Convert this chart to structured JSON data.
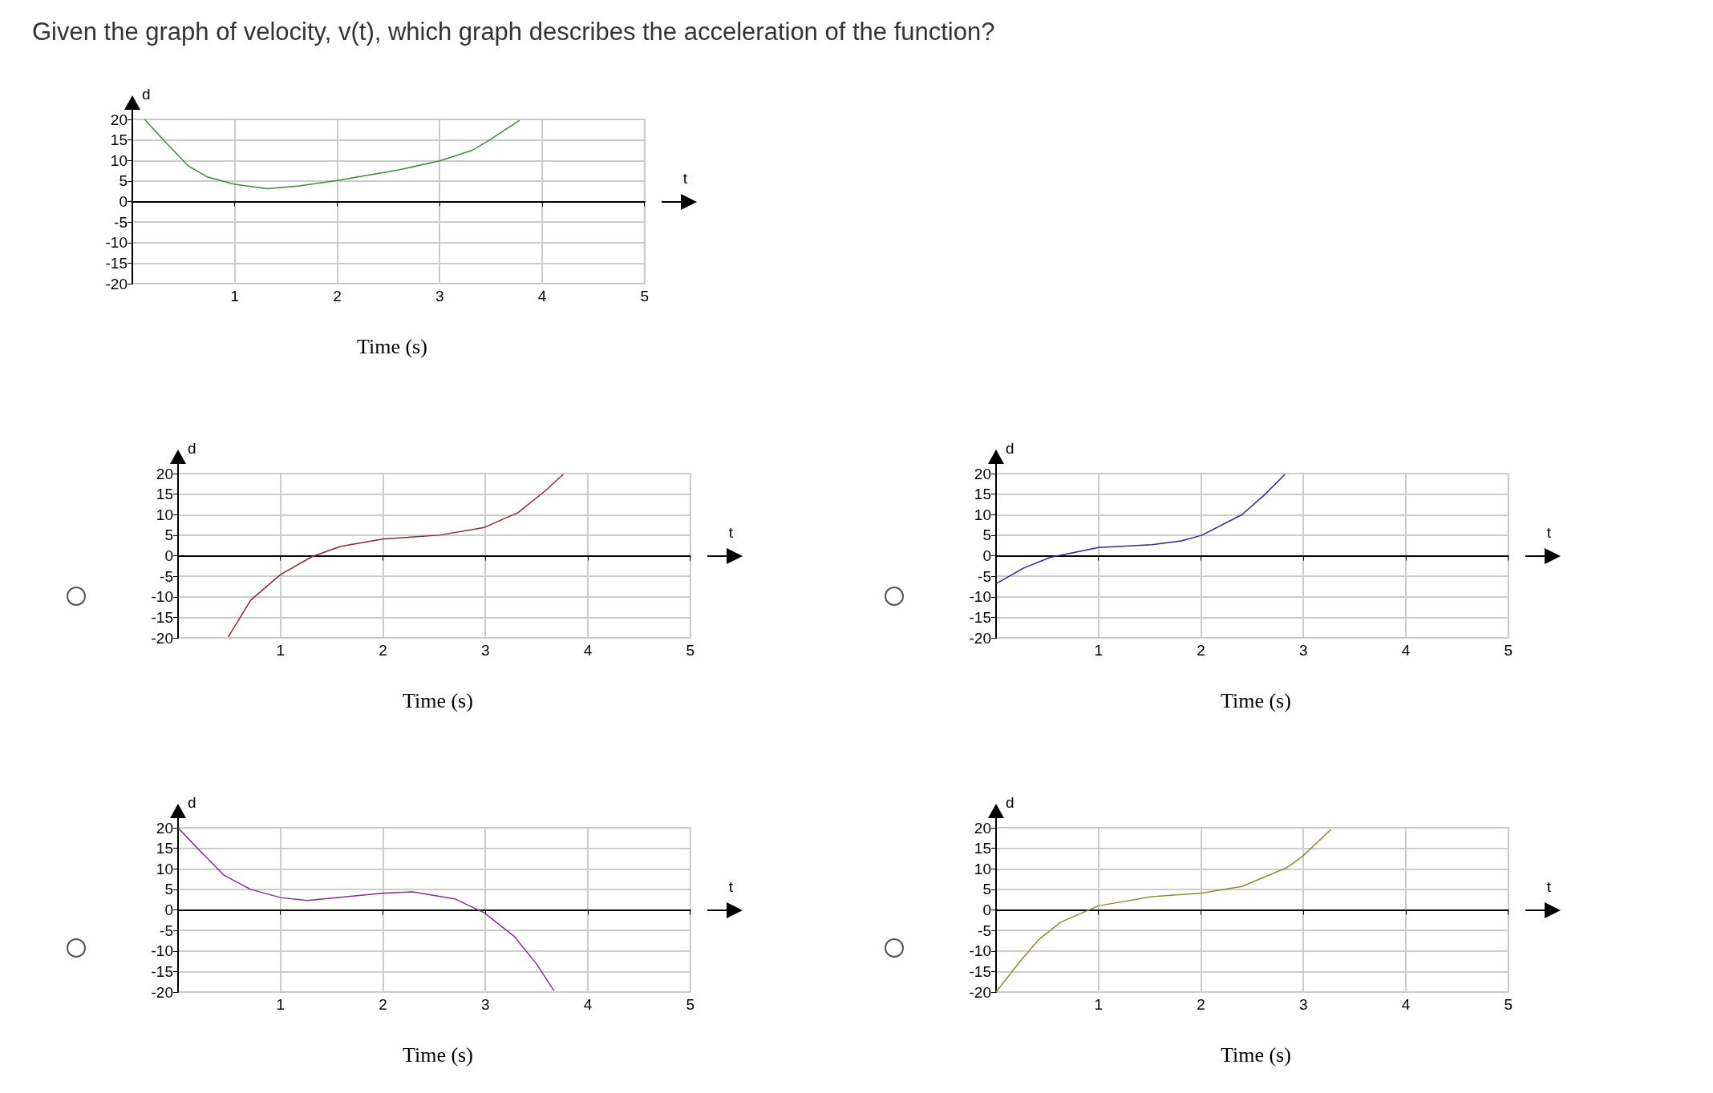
{
  "chart_data": [
    {
      "type": "line",
      "title": "Given the graph of velocity, v(t), which graph describes the acceleration of the function?",
      "xlabel": "t",
      "ylabel": "d",
      "annotations": [
        "Time (s)"
      ],
      "xlim": [
        0,
        5
      ],
      "ylim": [
        -20,
        20
      ],
      "xticks": [
        1,
        2,
        3,
        4,
        5
      ],
      "yticks": [
        -20,
        -15,
        -10,
        -5,
        0,
        5,
        10,
        15,
        20
      ],
      "grid": true,
      "marker": "none",
      "series": [
        {
          "color": "#3c8c3c",
          "x": [
            0.12,
            0.33,
            0.55,
            0.73,
            1.0,
            1.32,
            1.63,
            2.0,
            2.6,
            3.0,
            3.32,
            3.47,
            3.78
          ],
          "values": [
            20,
            14.3,
            8.6,
            6.0,
            4.2,
            3.1,
            3.8,
            5.1,
            7.7,
            9.9,
            12.5,
            14.7,
            19.8
          ]
        }
      ]
    },
    {
      "type": "line",
      "xlabel": "t",
      "ylabel": "d",
      "annotations": [
        "Time (s)"
      ],
      "xlim": [
        0,
        5
      ],
      "ylim": [
        -20,
        20
      ],
      "xticks": [
        1,
        2,
        3,
        4,
        5
      ],
      "yticks": [
        -20,
        -15,
        -10,
        -5,
        0,
        5,
        10,
        15,
        20
      ],
      "grid": true,
      "marker": "none",
      "series": [
        {
          "color": "#8b2a2a",
          "x": [
            0.49,
            0.71,
            1.0,
            1.31,
            1.59,
            2.01,
            2.55,
            2.99,
            3.32,
            3.58,
            3.76
          ],
          "values": [
            -19.8,
            -10.8,
            -4.6,
            -0.2,
            2.3,
            4.1,
            5.0,
            6.9,
            10.5,
            15.7,
            19.8
          ]
        }
      ]
    },
    {
      "type": "line",
      "xlabel": "t",
      "ylabel": "d",
      "annotations": [
        "Time (s)"
      ],
      "xlim": [
        0,
        5
      ],
      "ylim": [
        -20,
        20
      ],
      "xticks": [
        1,
        2,
        3,
        4,
        5
      ],
      "yticks": [
        -20,
        -15,
        -10,
        -5,
        0,
        5,
        10,
        15,
        20
      ],
      "grid": true,
      "marker": "none",
      "series": [
        {
          "color": "#2a2a9a",
          "x": [
            0,
            0.27,
            0.53,
            1.0,
            1.52,
            1.81,
            2.01,
            2.4,
            2.62,
            2.82
          ],
          "values": [
            -6.8,
            -3.0,
            -0.4,
            2.0,
            2.7,
            3.6,
            5.0,
            10.0,
            14.8,
            19.8
          ]
        }
      ]
    },
    {
      "type": "line",
      "xlabel": "t",
      "ylabel": "d",
      "annotations": [
        "Time (s)"
      ],
      "xlim": [
        0,
        5
      ],
      "ylim": [
        -20,
        20
      ],
      "xticks": [
        1,
        2,
        3,
        4,
        5
      ],
      "yticks": [
        -20,
        -15,
        -10,
        -5,
        0,
        5,
        10,
        15,
        20
      ],
      "grid": true,
      "marker": "none",
      "series": [
        {
          "color": "#8b2a9a",
          "x": [
            0,
            0.19,
            0.45,
            0.71,
            1.0,
            1.26,
            2.01,
            2.29,
            2.7,
            2.99,
            3.28,
            3.5,
            3.67
          ],
          "values": [
            20,
            15.0,
            8.4,
            5.0,
            3.0,
            2.3,
            4.1,
            4.4,
            2.7,
            -0.7,
            -6.4,
            -13.2,
            -19.7
          ]
        }
      ]
    },
    {
      "type": "line",
      "xlabel": "t",
      "ylabel": "d",
      "annotations": [
        "Time (s)"
      ],
      "xlim": [
        0,
        5
      ],
      "ylim": [
        -20,
        20
      ],
      "xticks": [
        1,
        2,
        3,
        4,
        5
      ],
      "yticks": [
        -20,
        -15,
        -10,
        -5,
        0,
        5,
        10,
        15,
        20
      ],
      "grid": true,
      "marker": "none",
      "series": [
        {
          "color": "#8c8c2a",
          "x": [
            0,
            0.23,
            0.41,
            0.63,
            1.0,
            1.52,
            2.01,
            2.4,
            2.84,
            2.99,
            3.27
          ],
          "values": [
            -20,
            -12.7,
            -7.4,
            -3.0,
            1.0,
            3.2,
            4.1,
            5.7,
            10.3,
            13.0,
            19.6
          ]
        }
      ]
    }
  ]
}
